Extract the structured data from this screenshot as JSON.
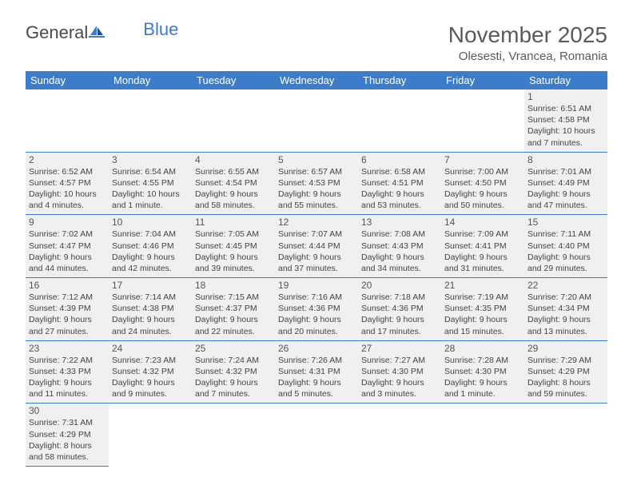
{
  "logo": {
    "text1": "General",
    "text2": "Blue"
  },
  "title": "November 2025",
  "location": "Olesesti, Vrancea, Romania",
  "colors": {
    "header_bg": "#3d7cc9",
    "header_text": "#ffffff",
    "cell_bg": "#f0f0f0",
    "border": "#3d7cc9",
    "title_text": "#5a5a5a",
    "body_text": "#444444"
  },
  "weekdays": [
    "Sunday",
    "Monday",
    "Tuesday",
    "Wednesday",
    "Thursday",
    "Friday",
    "Saturday"
  ],
  "weeks": [
    [
      null,
      null,
      null,
      null,
      null,
      null,
      {
        "n": "1",
        "sr": "6:51 AM",
        "ss": "4:58 PM",
        "dl": "10 hours and 7 minutes."
      }
    ],
    [
      {
        "n": "2",
        "sr": "6:52 AM",
        "ss": "4:57 PM",
        "dl": "10 hours and 4 minutes."
      },
      {
        "n": "3",
        "sr": "6:54 AM",
        "ss": "4:55 PM",
        "dl": "10 hours and 1 minute."
      },
      {
        "n": "4",
        "sr": "6:55 AM",
        "ss": "4:54 PM",
        "dl": "9 hours and 58 minutes."
      },
      {
        "n": "5",
        "sr": "6:57 AM",
        "ss": "4:53 PM",
        "dl": "9 hours and 55 minutes."
      },
      {
        "n": "6",
        "sr": "6:58 AM",
        "ss": "4:51 PM",
        "dl": "9 hours and 53 minutes."
      },
      {
        "n": "7",
        "sr": "7:00 AM",
        "ss": "4:50 PM",
        "dl": "9 hours and 50 minutes."
      },
      {
        "n": "8",
        "sr": "7:01 AM",
        "ss": "4:49 PM",
        "dl": "9 hours and 47 minutes."
      }
    ],
    [
      {
        "n": "9",
        "sr": "7:02 AM",
        "ss": "4:47 PM",
        "dl": "9 hours and 44 minutes."
      },
      {
        "n": "10",
        "sr": "7:04 AM",
        "ss": "4:46 PM",
        "dl": "9 hours and 42 minutes."
      },
      {
        "n": "11",
        "sr": "7:05 AM",
        "ss": "4:45 PM",
        "dl": "9 hours and 39 minutes."
      },
      {
        "n": "12",
        "sr": "7:07 AM",
        "ss": "4:44 PM",
        "dl": "9 hours and 37 minutes."
      },
      {
        "n": "13",
        "sr": "7:08 AM",
        "ss": "4:43 PM",
        "dl": "9 hours and 34 minutes."
      },
      {
        "n": "14",
        "sr": "7:09 AM",
        "ss": "4:41 PM",
        "dl": "9 hours and 31 minutes."
      },
      {
        "n": "15",
        "sr": "7:11 AM",
        "ss": "4:40 PM",
        "dl": "9 hours and 29 minutes."
      }
    ],
    [
      {
        "n": "16",
        "sr": "7:12 AM",
        "ss": "4:39 PM",
        "dl": "9 hours and 27 minutes."
      },
      {
        "n": "17",
        "sr": "7:14 AM",
        "ss": "4:38 PM",
        "dl": "9 hours and 24 minutes."
      },
      {
        "n": "18",
        "sr": "7:15 AM",
        "ss": "4:37 PM",
        "dl": "9 hours and 22 minutes."
      },
      {
        "n": "19",
        "sr": "7:16 AM",
        "ss": "4:36 PM",
        "dl": "9 hours and 20 minutes."
      },
      {
        "n": "20",
        "sr": "7:18 AM",
        "ss": "4:36 PM",
        "dl": "9 hours and 17 minutes."
      },
      {
        "n": "21",
        "sr": "7:19 AM",
        "ss": "4:35 PM",
        "dl": "9 hours and 15 minutes."
      },
      {
        "n": "22",
        "sr": "7:20 AM",
        "ss": "4:34 PM",
        "dl": "9 hours and 13 minutes."
      }
    ],
    [
      {
        "n": "23",
        "sr": "7:22 AM",
        "ss": "4:33 PM",
        "dl": "9 hours and 11 minutes."
      },
      {
        "n": "24",
        "sr": "7:23 AM",
        "ss": "4:32 PM",
        "dl": "9 hours and 9 minutes."
      },
      {
        "n": "25",
        "sr": "7:24 AM",
        "ss": "4:32 PM",
        "dl": "9 hours and 7 minutes."
      },
      {
        "n": "26",
        "sr": "7:26 AM",
        "ss": "4:31 PM",
        "dl": "9 hours and 5 minutes."
      },
      {
        "n": "27",
        "sr": "7:27 AM",
        "ss": "4:30 PM",
        "dl": "9 hours and 3 minutes."
      },
      {
        "n": "28",
        "sr": "7:28 AM",
        "ss": "4:30 PM",
        "dl": "9 hours and 1 minute."
      },
      {
        "n": "29",
        "sr": "7:29 AM",
        "ss": "4:29 PM",
        "dl": "8 hours and 59 minutes."
      }
    ],
    [
      {
        "n": "30",
        "sr": "7:31 AM",
        "ss": "4:29 PM",
        "dl": "8 hours and 58 minutes."
      },
      null,
      null,
      null,
      null,
      null,
      null
    ]
  ],
  "labels": {
    "sunrise": "Sunrise:",
    "sunset": "Sunset:",
    "daylight": "Daylight:"
  }
}
